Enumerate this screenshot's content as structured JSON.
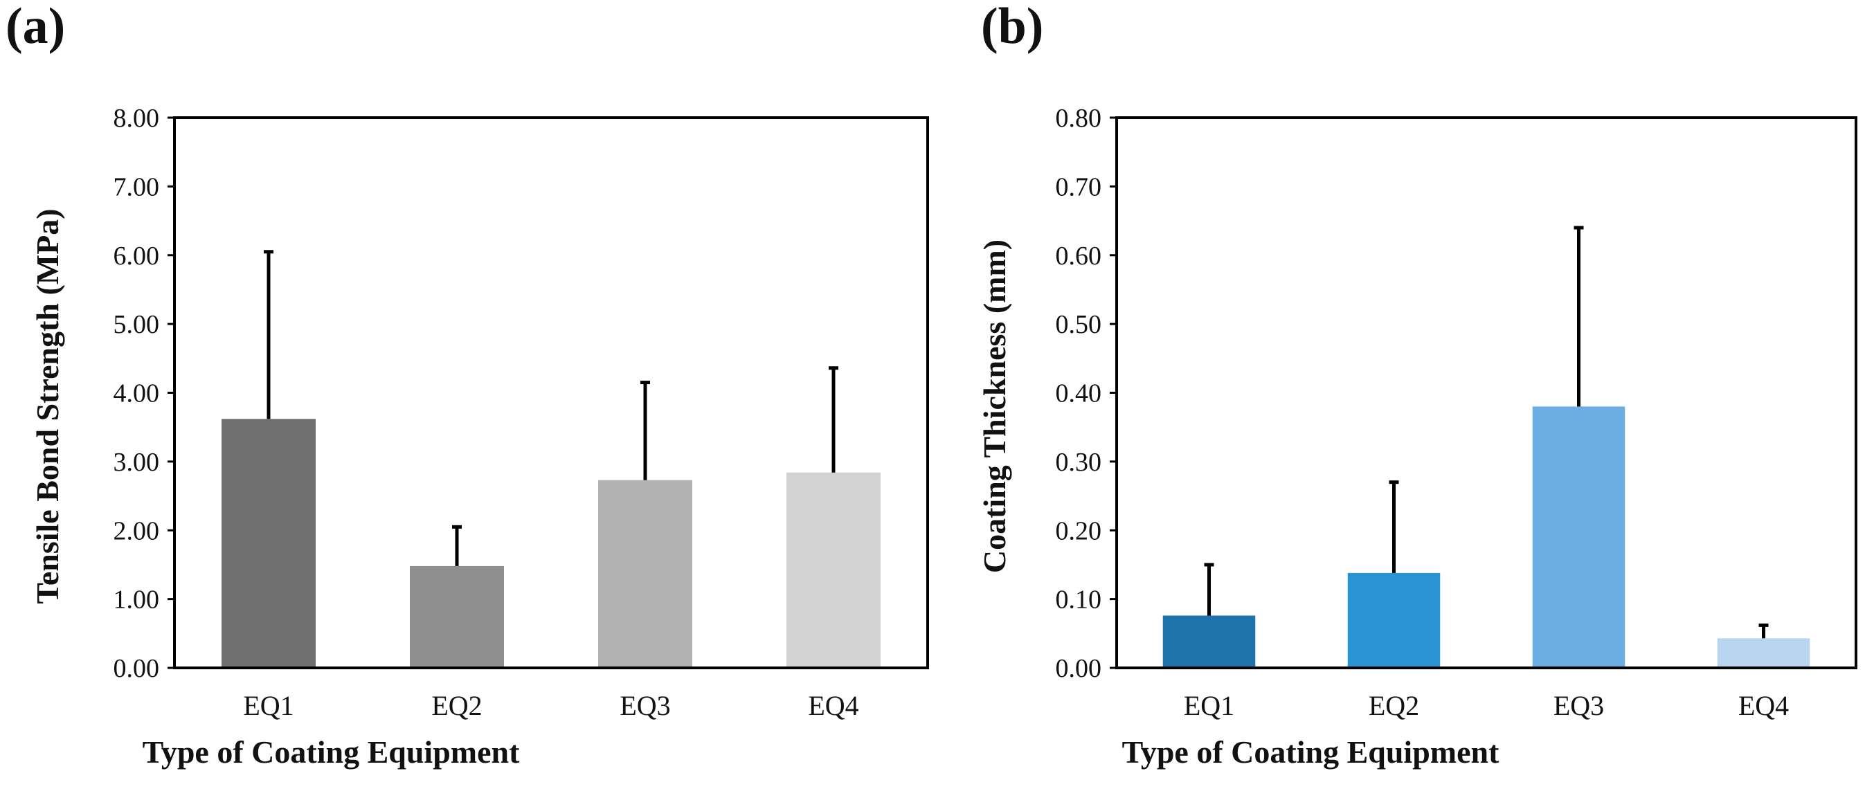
{
  "chart_data": [
    {
      "type": "bar",
      "panel_label": "(a)",
      "title": "",
      "categories": [
        "EQ1",
        "EQ2",
        "EQ3",
        "EQ4"
      ],
      "values": [
        3.62,
        1.48,
        2.73,
        2.84
      ],
      "error_upper": [
        6.05,
        2.05,
        4.15,
        4.36
      ],
      "bar_colors": [
        "#6f6f6f",
        "#8f8f8f",
        "#b2b2b2",
        "#d3d3d3"
      ],
      "ylim": [
        0,
        8
      ],
      "yticks": [
        "0.00",
        "1.00",
        "2.00",
        "3.00",
        "4.00",
        "5.00",
        "6.00",
        "7.00",
        "8.00"
      ],
      "xlabel": "Type of Coating Equipment",
      "ylabel": "Tensile Bond Strength (MPa)",
      "grid": false
    },
    {
      "type": "bar",
      "panel_label": "(b)",
      "title": "",
      "categories": [
        "EQ1",
        "EQ2",
        "EQ3",
        "EQ4"
      ],
      "values": [
        0.076,
        0.138,
        0.38,
        0.043
      ],
      "error_upper": [
        0.15,
        0.27,
        0.64,
        0.062
      ],
      "bar_colors": [
        "#1f73ad",
        "#2a93d3",
        "#6caee3",
        "#b7d5ef"
      ],
      "ylim": [
        0,
        0.8
      ],
      "yticks": [
        "0.00",
        "0.10",
        "0.20",
        "0.30",
        "0.40",
        "0.50",
        "0.60",
        "0.70",
        "0.80"
      ],
      "xlabel": "Type of Coating Equipment",
      "ylabel": "Coating Thickness (mm)",
      "grid": false
    }
  ]
}
